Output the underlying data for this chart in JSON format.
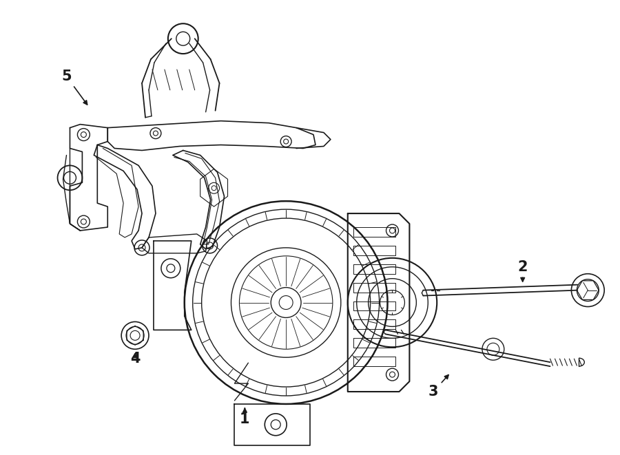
{
  "background_color": "#ffffff",
  "line_color": "#1a1a1a",
  "lw": 1.0,
  "fig_width": 9.0,
  "fig_height": 6.61,
  "dpi": 100
}
